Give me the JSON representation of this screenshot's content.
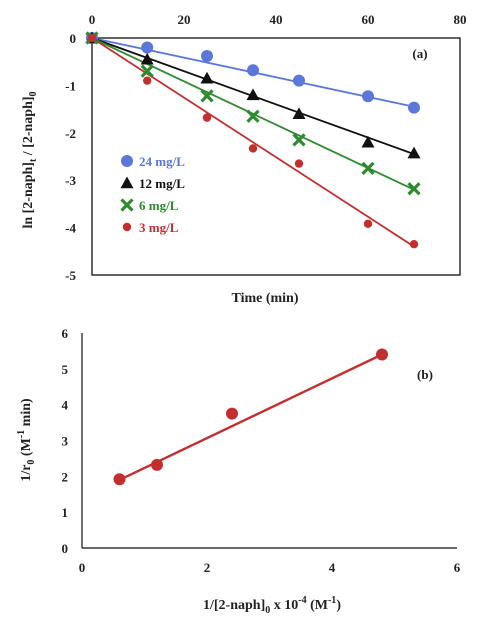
{
  "chart_data": [
    {
      "type": "scatter",
      "panel_label": "(a)",
      "xlabel": "Time (min)",
      "ylabel": {
        "main": "ln [2-naph]",
        "sub1": "t",
        "mid": " / [2-naph]",
        "sub2": "0"
      },
      "xlim": [
        0,
        80
      ],
      "ylim": [
        -5,
        0
      ],
      "x_ticks": [
        "0",
        "20",
        "40",
        "60",
        "80"
      ],
      "y_ticks": [
        "0",
        "-1",
        "-2",
        "-3",
        "-4",
        "-5"
      ],
      "grid": false,
      "legend_position": "left, lower-middle",
      "series": [
        {
          "name": "24 mg/L",
          "color": "#5b77d9",
          "marker": "circle",
          "x": [
            0,
            12,
            25,
            35,
            45,
            60,
            70
          ],
          "y": [
            0,
            -0.2,
            -0.38,
            -0.68,
            -0.9,
            -1.23,
            -1.47
          ],
          "fit": [
            [
              0,
              0
            ],
            [
              70,
              -1.45
            ]
          ]
        },
        {
          "name": "12 mg/L",
          "color": "#111111",
          "marker": "triangle",
          "x": [
            0,
            12,
            25,
            35,
            45,
            60,
            70
          ],
          "y": [
            0,
            -0.45,
            -0.85,
            -1.2,
            -1.6,
            -2.2,
            -2.43
          ],
          "fit": [
            [
              0,
              0
            ],
            [
              70,
              -2.45
            ]
          ]
        },
        {
          "name": "6 mg/L",
          "color": "#2e8b2e",
          "marker": "x",
          "x": [
            0,
            12,
            25,
            35,
            45,
            60,
            70
          ],
          "y": [
            0,
            -0.7,
            -1.22,
            -1.65,
            -2.15,
            -2.75,
            -3.18
          ],
          "fit": [
            [
              0,
              0
            ],
            [
              70,
              -3.2
            ]
          ]
        },
        {
          "name": "3 mg/L",
          "color": "#c32f2f",
          "marker": "circle-small",
          "x": [
            0,
            12,
            25,
            35,
            45,
            60,
            70
          ],
          "y": [
            0,
            -0.9,
            -1.68,
            -2.33,
            -2.65,
            -3.92,
            -4.35
          ],
          "fit": [
            [
              0,
              0
            ],
            [
              70,
              -4.4
            ]
          ]
        }
      ]
    },
    {
      "type": "scatter",
      "panel_label": "(b)",
      "xlabel": {
        "main": "1/[2-naph]",
        "sub": "0",
        "mid": " x 10",
        "sup": "-4",
        "tail1": " (M",
        "sup2": "-1",
        "tail2": ")"
      },
      "ylabel": {
        "main": "1/r",
        "sub": "0",
        "mid": " (M",
        "sup": "-1",
        "tail": " min)"
      },
      "xlim": [
        0,
        6
      ],
      "ylim": [
        0,
        6
      ],
      "x_ticks": [
        "0",
        "2",
        "4",
        "6"
      ],
      "y_ticks": [
        "0",
        "1",
        "2",
        "3",
        "4",
        "5",
        "6"
      ],
      "grid": false,
      "series": [
        {
          "color": "#c32f2f",
          "marker": "circle",
          "x": [
            0.6,
            1.2,
            2.4,
            4.8
          ],
          "y": [
            1.92,
            2.32,
            3.75,
            5.4
          ],
          "fit": [
            [
              0.6,
              1.9
            ],
            [
              4.8,
              5.4
            ]
          ]
        }
      ]
    }
  ]
}
